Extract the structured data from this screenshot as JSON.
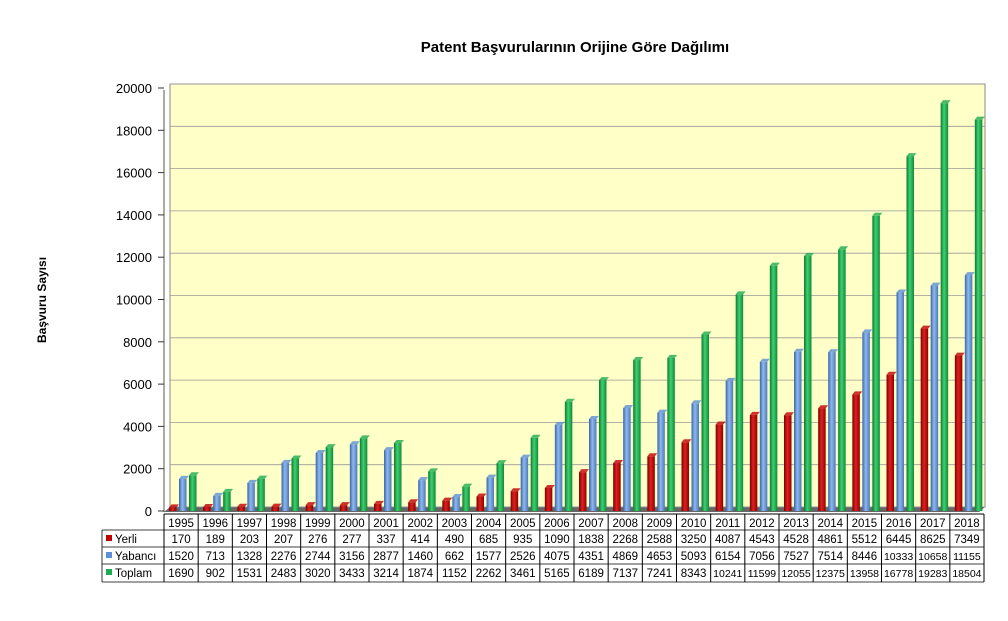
{
  "chart_data": {
    "type": "bar",
    "title": "Patent Başvurularının Orijine Göre Dağılımı",
    "xlabel": "",
    "ylabel": "Başvuru Sayısı",
    "ylim": [
      0,
      20000
    ],
    "yticks": [
      0,
      2000,
      4000,
      6000,
      8000,
      10000,
      12000,
      14000,
      16000,
      18000,
      20000
    ],
    "grid": true,
    "legend": "table-bottom",
    "categories": [
      "1995",
      "1996",
      "1997",
      "1998",
      "1999",
      "2000",
      "2001",
      "2002",
      "2003",
      "2004",
      "2005",
      "2006",
      "2007",
      "2008",
      "2009",
      "2010",
      "2011",
      "2012",
      "2013",
      "2014",
      "2015",
      "2016",
      "2017",
      "2018"
    ],
    "series": [
      {
        "name": "Yerli",
        "color": "#c00000",
        "values": [
          170,
          189,
          203,
          207,
          276,
          277,
          337,
          414,
          490,
          685,
          935,
          1090,
          1838,
          2268,
          2588,
          3250,
          4087,
          4543,
          4528,
          4861,
          5512,
          6445,
          8625,
          7349
        ]
      },
      {
        "name": "Yabancı",
        "color": "#5b8fd6",
        "values": [
          1520,
          713,
          1328,
          2276,
          2744,
          3156,
          2877,
          1460,
          662,
          1577,
          2526,
          4075,
          4351,
          4869,
          4653,
          5093,
          6154,
          7056,
          7527,
          7514,
          8446,
          10333,
          10658,
          11155
        ]
      },
      {
        "name": "Toplam",
        "color": "#1daa50",
        "values": [
          1690,
          902,
          1531,
          2483,
          3020,
          3433,
          3214,
          1874,
          1152,
          2262,
          3461,
          5165,
          6189,
          7137,
          7241,
          8343,
          10241,
          11599,
          12055,
          12375,
          13958,
          16778,
          19283,
          18504
        ]
      }
    ]
  }
}
